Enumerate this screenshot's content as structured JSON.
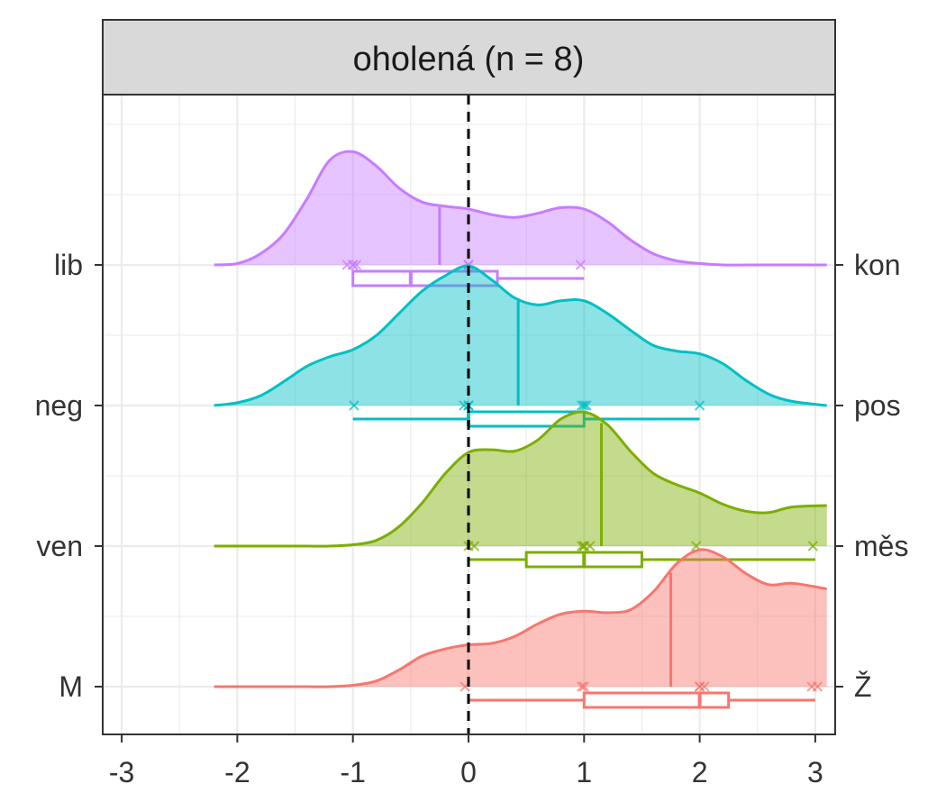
{
  "chart_data": {
    "type": "density",
    "title": "",
    "xlabel": "",
    "ylabel": "",
    "facet_label": "oholená (n = 8)",
    "xlim": [
      -3.1,
      3.1
    ],
    "x_ticks": [
      "-3",
      "-2",
      "-1",
      "0",
      "1",
      "2",
      "3"
    ],
    "x_tick_values": [
      -3,
      -2,
      -1,
      0,
      1,
      2,
      3
    ],
    "reference_line": {
      "x": 0,
      "style": "dashed",
      "color": "#000000"
    },
    "grid": true,
    "legend": "none",
    "series": [
      {
        "left_label": "lib",
        "right_label": "kon",
        "color": "#C77CFF",
        "density_x": [
          -2.2,
          -2.0,
          -1.8,
          -1.6,
          -1.4,
          -1.2,
          -1.0,
          -0.8,
          -0.6,
          -0.4,
          -0.2,
          0.0,
          0.2,
          0.4,
          0.6,
          0.8,
          1.0,
          1.2,
          1.4,
          1.6,
          1.8,
          2.0,
          2.2,
          2.4,
          2.6,
          2.8,
          3.1
        ],
        "density_y": [
          0.0,
          0.01,
          0.08,
          0.22,
          0.47,
          0.75,
          0.81,
          0.71,
          0.55,
          0.45,
          0.42,
          0.4,
          0.36,
          0.34,
          0.37,
          0.41,
          0.4,
          0.31,
          0.18,
          0.08,
          0.03,
          0.01,
          0.0,
          0.0,
          0.0,
          0.0,
          0.0
        ],
        "mean": -0.25,
        "points": [
          -1.05,
          -1.0,
          -1.0,
          -0.97,
          0.0,
          0.0,
          0.0,
          0.97
        ],
        "box": {
          "min": -1.0,
          "q1": -1.0,
          "median": -0.5,
          "q3": 0.25,
          "max": 1.0
        }
      },
      {
        "left_label": "neg",
        "right_label": "pos",
        "color": "#00BFC4",
        "density_x": [
          -2.2,
          -2.0,
          -1.8,
          -1.6,
          -1.4,
          -1.2,
          -1.0,
          -0.8,
          -0.6,
          -0.4,
          -0.2,
          0.0,
          0.2,
          0.4,
          0.6,
          0.8,
          1.0,
          1.2,
          1.4,
          1.6,
          1.8,
          2.0,
          2.2,
          2.4,
          2.6,
          2.8,
          3.1
        ],
        "density_y": [
          0.0,
          0.02,
          0.07,
          0.17,
          0.28,
          0.35,
          0.4,
          0.5,
          0.66,
          0.82,
          0.93,
          1.0,
          0.9,
          0.77,
          0.72,
          0.75,
          0.75,
          0.66,
          0.54,
          0.43,
          0.39,
          0.37,
          0.3,
          0.18,
          0.08,
          0.03,
          0.0
        ],
        "mean": 0.43,
        "points": [
          -0.99,
          -0.04,
          0.0,
          0.0,
          0.98,
          1.0,
          1.02,
          2.0
        ],
        "box": {
          "min": -1.0,
          "q1": 0.0,
          "median": 0.0,
          "q3": 1.0,
          "max": 2.0
        }
      },
      {
        "left_label": "ven",
        "right_label": "měs",
        "color": "#7CAE00",
        "density_x": [
          -2.2,
          -2.0,
          -1.8,
          -1.6,
          -1.4,
          -1.2,
          -1.0,
          -0.8,
          -0.6,
          -0.4,
          -0.2,
          0.0,
          0.2,
          0.4,
          0.6,
          0.8,
          1.0,
          1.2,
          1.4,
          1.6,
          1.8,
          2.0,
          2.2,
          2.4,
          2.6,
          2.8,
          3.1
        ],
        "density_y": [
          0.0,
          0.0,
          0.0,
          0.0,
          0.0,
          0.0,
          0.01,
          0.04,
          0.14,
          0.31,
          0.52,
          0.67,
          0.69,
          0.68,
          0.76,
          0.91,
          0.96,
          0.87,
          0.68,
          0.52,
          0.44,
          0.38,
          0.3,
          0.25,
          0.24,
          0.28,
          0.29
        ],
        "mean": 1.15,
        "points": [
          0.0,
          0.05,
          0.98,
          1.0,
          1.0,
          1.05,
          1.97,
          2.98
        ],
        "box": {
          "min": 0.0,
          "q1": 0.5,
          "median": 1.0,
          "q3": 1.5,
          "max": 3.0
        }
      },
      {
        "left_label": "M",
        "right_label": "Ž",
        "color": "#F8766D",
        "density_x": [
          -2.2,
          -2.0,
          -1.8,
          -1.6,
          -1.4,
          -1.2,
          -1.0,
          -0.8,
          -0.6,
          -0.4,
          -0.2,
          0.0,
          0.2,
          0.4,
          0.6,
          0.8,
          1.0,
          1.2,
          1.4,
          1.6,
          1.8,
          2.0,
          2.2,
          2.4,
          2.6,
          2.8,
          3.1
        ],
        "density_y": [
          0.0,
          0.0,
          0.0,
          0.0,
          0.0,
          0.0,
          0.01,
          0.04,
          0.12,
          0.22,
          0.27,
          0.3,
          0.31,
          0.36,
          0.45,
          0.52,
          0.54,
          0.53,
          0.55,
          0.68,
          0.88,
          0.98,
          0.93,
          0.81,
          0.73,
          0.74,
          0.7
        ],
        "mean": 1.75,
        "points": [
          -0.03,
          0.98,
          1.0,
          2.0,
          2.0,
          2.04,
          2.97,
          3.02
        ],
        "box": {
          "min": 0.0,
          "q1": 1.0,
          "median": 2.0,
          "q3": 2.25,
          "max": 3.0
        }
      }
    ]
  }
}
